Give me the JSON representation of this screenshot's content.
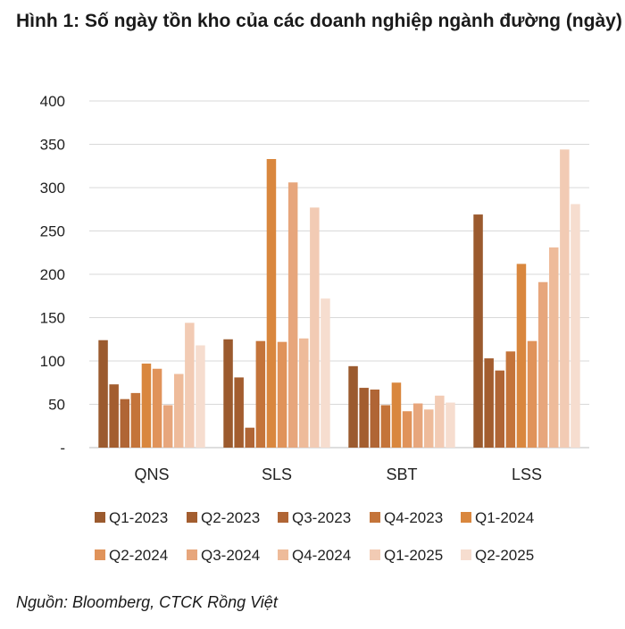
{
  "figure": {
    "title": "Hình 1: Số ngày tồn kho của các doanh nghiệp ngành đường (ngày)",
    "source": "Nguồn: Bloomberg, CTCK Rồng Việt"
  },
  "chart_data": {
    "type": "bar",
    "title": "Hình 1: Số ngày tồn kho của các doanh nghiệp ngành đường (ngày)",
    "xlabel": "",
    "ylabel": "",
    "ylim": [
      0,
      400
    ],
    "yticks": [
      0,
      50,
      100,
      150,
      200,
      250,
      300,
      350,
      400
    ],
    "yticklabels": [
      "-",
      "50",
      "100",
      "150",
      "200",
      "250",
      "300",
      "350",
      "400"
    ],
    "grid": true,
    "legend_position": "bottom",
    "categories": [
      "QNS",
      "SLS",
      "SBT",
      "LSS"
    ],
    "series": [
      {
        "name": "Q1-2023",
        "color": "#9b5a2e",
        "values": [
          124,
          125,
          94,
          269
        ]
      },
      {
        "name": "Q2-2023",
        "color": "#a35d2f",
        "values": [
          73,
          81,
          69,
          103
        ]
      },
      {
        "name": "Q3-2023",
        "color": "#b06535",
        "values": [
          56,
          23,
          67,
          89
        ]
      },
      {
        "name": "Q4-2023",
        "color": "#c4743a",
        "values": [
          63,
          123,
          49,
          111
        ]
      },
      {
        "name": "Q1-2024",
        "color": "#d9873e",
        "values": [
          97,
          333,
          75,
          212
        ]
      },
      {
        "name": "Q2-2024",
        "color": "#e0935a",
        "values": [
          91,
          122,
          42,
          123
        ]
      },
      {
        "name": "Q3-2024",
        "color": "#e7a67c",
        "values": [
          49,
          306,
          51,
          191
        ]
      },
      {
        "name": "Q4-2024",
        "color": "#eebb9a",
        "values": [
          85,
          126,
          44,
          231
        ]
      },
      {
        "name": "Q1-2025",
        "color": "#f2cbb4",
        "values": [
          144,
          277,
          60,
          344
        ]
      },
      {
        "name": "Q2-2025",
        "color": "#f6ddcf",
        "values": [
          118,
          172,
          52,
          281
        ]
      }
    ]
  }
}
